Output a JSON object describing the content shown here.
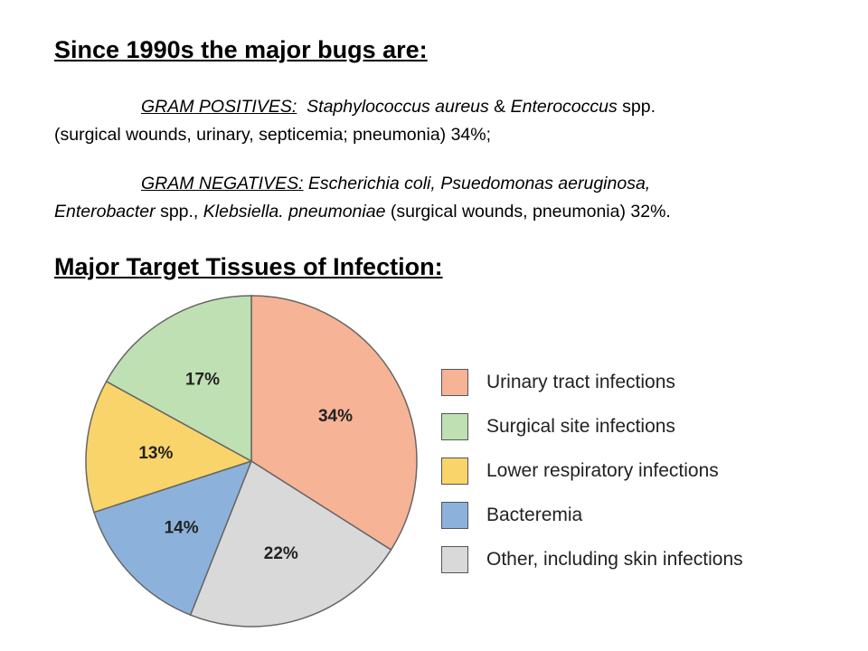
{
  "heading1": "Since 1990s the major bugs are:",
  "para1": {
    "label": "GRAM POSITIVES:",
    "organisms": [
      {
        "text": "Staphylococcus aureus",
        "italic": true
      },
      {
        "text": " & ",
        "italic": false
      },
      {
        "text": "Enterococcus",
        "italic": true
      },
      {
        "text": " spp.",
        "italic": false
      }
    ],
    "details": "(surgical wounds, urinary, septicemia; pneumonia) 34%;"
  },
  "para2": {
    "label": "GRAM NEGATIVES:",
    "line1": "Escherichia coli, Psuedomonas aeruginosa,",
    "line2_parts": [
      {
        "text": "Enterobacter",
        "italic": true
      },
      {
        "text": " spp., ",
        "italic": false
      },
      {
        "text": "Klebsiella. pneumoniae",
        "italic": true
      },
      {
        "text": " (surgical wounds, pneumonia)   32%.",
        "italic": false
      }
    ]
  },
  "heading2": "Major Target Tissues of Infection:",
  "chart_data": {
    "type": "pie",
    "slices": [
      {
        "label": "Urinary tract infections",
        "value": 34,
        "data_label": "34%",
        "color": "#f6b396"
      },
      {
        "label": "Other, including skin infections",
        "value": 22,
        "data_label": "22%",
        "color": "#d9d9d9"
      },
      {
        "label": "Bacteremia",
        "value": 14,
        "data_label": "14%",
        "color": "#8cb2db"
      },
      {
        "label": "Lower respiratory infections",
        "value": 13,
        "data_label": "13%",
        "color": "#f9d46b"
      },
      {
        "label": "Surgical site infections",
        "value": 17,
        "data_label": "17%",
        "color": "#bfe0b3"
      }
    ],
    "start_angle_deg": 0,
    "direction": "clockwise",
    "legend": {
      "placement": "right",
      "order": [
        "Urinary tract infections",
        "Surgical site infections",
        "Lower respiratory infections",
        "Bacteremia",
        "Other, including skin infections"
      ]
    }
  }
}
